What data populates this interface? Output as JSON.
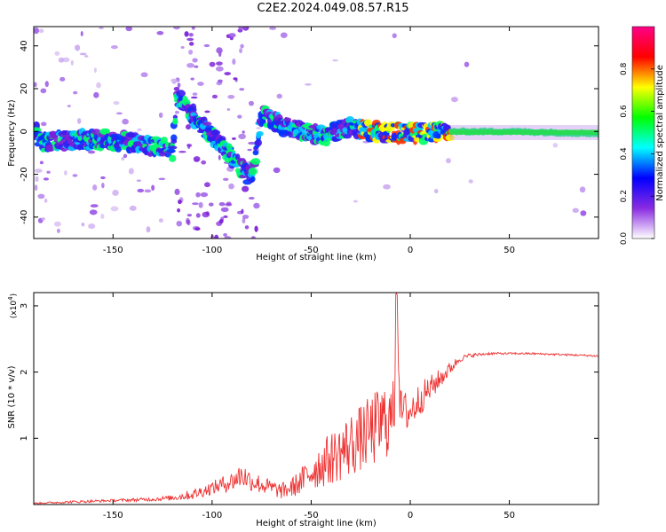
{
  "title": "C2E2.2024.049.08.57.R15",
  "chart_data": [
    {
      "type": "heatmap",
      "xlabel": "Height of straight line (km)",
      "ylabel": "Frequency (Hz)",
      "xlim": [
        -190,
        95
      ],
      "ylim": [
        -50,
        49
      ],
      "x_ticks": [
        -150,
        -100,
        -50,
        0,
        50
      ],
      "y_ticks": [
        -40,
        -20,
        0,
        20,
        40
      ],
      "colorbar": {
        "label": "Normalized spectral amplitude",
        "range": [
          0,
          1
        ],
        "ticks": [
          "0.0",
          "0.2",
          "0.4",
          "0.6",
          "0.8"
        ],
        "colors": [
          "#ffffff",
          "#8a2be2",
          "#0000ff",
          "#00ffff",
          "#00ff00",
          "#ffff00",
          "#ff0000",
          "#ff0088"
        ]
      },
      "band_center": [
        {
          "x": -188,
          "y": -5
        },
        {
          "x": -170,
          "y": -4
        },
        {
          "x": -150,
          "y": -4
        },
        {
          "x": -135,
          "y": -6
        },
        {
          "x": -125,
          "y": -7
        },
        {
          "x": -120,
          "y": -10
        },
        {
          "x": -118,
          "y": 16
        },
        {
          "x": -80,
          "y": -22
        },
        {
          "x": -75,
          "y": 8
        },
        {
          "x": -65,
          "y": 3
        },
        {
          "x": -55,
          "y": 0
        },
        {
          "x": -45,
          "y": -2
        },
        {
          "x": -30,
          "y": 2
        },
        {
          "x": -20,
          "y": 0
        },
        {
          "x": 0,
          "y": -1
        },
        {
          "x": 20,
          "y": 0
        },
        {
          "x": 50,
          "y": 0
        },
        {
          "x": 95,
          "y": -1
        }
      ]
    },
    {
      "type": "line",
      "xlabel": "Height of straight line (km)",
      "ylabel": "SNR (10 * v/v)",
      "yunit": "(x10",
      "yunit_exp": "4",
      "xlim": [
        -190,
        95
      ],
      "ylim": [
        0,
        3.2
      ],
      "x_ticks": [
        -150,
        -100,
        -50,
        0,
        50
      ],
      "y_ticks": [
        1,
        2,
        3
      ],
      "color": "#ee3333",
      "series": [
        {
          "x": [
            -190,
            -170,
            -150,
            -130,
            -120,
            -110,
            -100,
            -90,
            -85,
            -80,
            -75,
            -70,
            -65,
            -60,
            -55,
            -50,
            -45,
            -40,
            -35,
            -30,
            -25,
            -20,
            -15,
            -12,
            -10,
            -8,
            -7,
            -5,
            0,
            5,
            10,
            15,
            20,
            25,
            30,
            40,
            50,
            60,
            70,
            80,
            90,
            95
          ],
          "values": [
            0.02,
            0.04,
            0.06,
            0.08,
            0.1,
            0.15,
            0.25,
            0.35,
            0.45,
            0.35,
            0.3,
            0.25,
            0.2,
            0.25,
            0.35,
            0.5,
            0.6,
            0.7,
            0.8,
            0.9,
            1.0,
            1.1,
            1.2,
            1.3,
            1.25,
            1.5,
            3.2,
            1.4,
            1.4,
            1.6,
            1.75,
            1.9,
            2.05,
            2.2,
            2.25,
            2.28,
            2.28,
            2.28,
            2.27,
            2.26,
            2.25,
            2.24
          ],
          "jitter": [
            0.01,
            0.02,
            0.02,
            0.03,
            0.04,
            0.08,
            0.1,
            0.15,
            0.2,
            0.15,
            0.15,
            0.12,
            0.12,
            0.15,
            0.2,
            0.3,
            0.35,
            0.4,
            0.45,
            0.5,
            0.5,
            0.55,
            0.6,
            0.6,
            0.6,
            0.4,
            0.0,
            0.35,
            0.3,
            0.25,
            0.2,
            0.15,
            0.1,
            0.05,
            0.03,
            0.02,
            0.015,
            0.015,
            0.015,
            0.015,
            0.015,
            0.015
          ]
        }
      ]
    }
  ]
}
